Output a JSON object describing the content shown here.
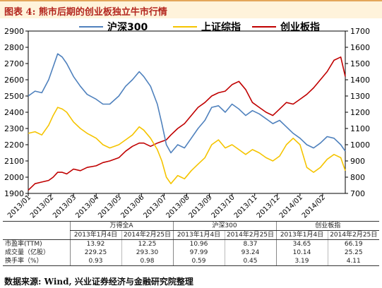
{
  "title": "图表 4: 熊市后期的创业板独立牛市行情",
  "source": "数据来源: Wind, 兴业证券经济与金融研究院整理",
  "chart_data": {
    "type": "line",
    "x_ticks": [
      "2013/01",
      "2013/02",
      "2013/03",
      "2013/04",
      "2013/05",
      "2013/06",
      "2013/07",
      "2013/08",
      "2013/09",
      "2013/10",
      "2013/11",
      "2013/12",
      "2014/01",
      "2014/02"
    ],
    "y_left": {
      "min": 1900,
      "max": 2900,
      "ticks": [
        "1900",
        "2000",
        "2100",
        "2200",
        "2300",
        "2400",
        "2500",
        "2600",
        "2700",
        "2800",
        "2900"
      ]
    },
    "y_right": {
      "min": 700,
      "max": 1700,
      "ticks": [
        "700",
        "800",
        "900",
        "1000",
        "1100",
        "1200",
        "1300",
        "1400",
        "1500",
        "1600",
        "1700"
      ]
    },
    "legend_position": "top-left",
    "series": [
      {
        "name": "沪深300",
        "axis": "left",
        "color": "#4F81BD",
        "points": [
          [
            0,
            2500
          ],
          [
            0.3,
            2530
          ],
          [
            0.6,
            2520
          ],
          [
            0.9,
            2600
          ],
          [
            1.1,
            2680
          ],
          [
            1.3,
            2760
          ],
          [
            1.5,
            2740
          ],
          [
            1.7,
            2700
          ],
          [
            2.0,
            2620
          ],
          [
            2.3,
            2560
          ],
          [
            2.6,
            2510
          ],
          [
            3.0,
            2480
          ],
          [
            3.3,
            2450
          ],
          [
            3.6,
            2450
          ],
          [
            4.0,
            2500
          ],
          [
            4.3,
            2560
          ],
          [
            4.6,
            2600
          ],
          [
            4.9,
            2650
          ],
          [
            5.1,
            2620
          ],
          [
            5.4,
            2560
          ],
          [
            5.7,
            2450
          ],
          [
            5.9,
            2330
          ],
          [
            6.1,
            2200
          ],
          [
            6.3,
            2150
          ],
          [
            6.6,
            2200
          ],
          [
            6.9,
            2180
          ],
          [
            7.2,
            2240
          ],
          [
            7.5,
            2300
          ],
          [
            7.8,
            2350
          ],
          [
            8.1,
            2430
          ],
          [
            8.4,
            2440
          ],
          [
            8.7,
            2400
          ],
          [
            9.0,
            2450
          ],
          [
            9.3,
            2420
          ],
          [
            9.6,
            2380
          ],
          [
            9.9,
            2410
          ],
          [
            10.2,
            2390
          ],
          [
            10.5,
            2360
          ],
          [
            10.8,
            2330
          ],
          [
            11.1,
            2350
          ],
          [
            11.4,
            2310
          ],
          [
            11.7,
            2270
          ],
          [
            12.0,
            2240
          ],
          [
            12.3,
            2200
          ],
          [
            12.6,
            2180
          ],
          [
            12.9,
            2210
          ],
          [
            13.2,
            2250
          ],
          [
            13.5,
            2240
          ],
          [
            13.8,
            2200
          ],
          [
            14.0,
            2160
          ]
        ]
      },
      {
        "name": "上证综指",
        "axis": "left",
        "color": "#F5C400",
        "points": [
          [
            0,
            2270
          ],
          [
            0.3,
            2280
          ],
          [
            0.6,
            2260
          ],
          [
            0.9,
            2320
          ],
          [
            1.1,
            2380
          ],
          [
            1.3,
            2430
          ],
          [
            1.5,
            2420
          ],
          [
            1.7,
            2400
          ],
          [
            2.0,
            2340
          ],
          [
            2.3,
            2300
          ],
          [
            2.6,
            2270
          ],
          [
            3.0,
            2240
          ],
          [
            3.3,
            2200
          ],
          [
            3.6,
            2180
          ],
          [
            4.0,
            2200
          ],
          [
            4.3,
            2230
          ],
          [
            4.6,
            2260
          ],
          [
            4.9,
            2310
          ],
          [
            5.1,
            2290
          ],
          [
            5.4,
            2240
          ],
          [
            5.7,
            2170
          ],
          [
            5.9,
            2100
          ],
          [
            6.1,
            2000
          ],
          [
            6.3,
            1960
          ],
          [
            6.6,
            2010
          ],
          [
            6.9,
            1990
          ],
          [
            7.2,
            2040
          ],
          [
            7.5,
            2080
          ],
          [
            7.8,
            2120
          ],
          [
            8.1,
            2200
          ],
          [
            8.4,
            2230
          ],
          [
            8.7,
            2180
          ],
          [
            9.0,
            2200
          ],
          [
            9.3,
            2170
          ],
          [
            9.6,
            2140
          ],
          [
            9.9,
            2170
          ],
          [
            10.2,
            2150
          ],
          [
            10.5,
            2120
          ],
          [
            10.8,
            2100
          ],
          [
            11.1,
            2130
          ],
          [
            11.4,
            2200
          ],
          [
            11.7,
            2240
          ],
          [
            12.0,
            2200
          ],
          [
            12.3,
            2060
          ],
          [
            12.6,
            2030
          ],
          [
            12.9,
            2060
          ],
          [
            13.2,
            2110
          ],
          [
            13.5,
            2140
          ],
          [
            13.8,
            2120
          ],
          [
            14.0,
            2040
          ]
        ]
      },
      {
        "name": "创业板指",
        "axis": "right",
        "color": "#C00000",
        "points": [
          [
            0,
            720
          ],
          [
            0.3,
            760
          ],
          [
            0.6,
            770
          ],
          [
            0.9,
            780
          ],
          [
            1.1,
            800
          ],
          [
            1.3,
            830
          ],
          [
            1.5,
            830
          ],
          [
            1.7,
            820
          ],
          [
            2.0,
            850
          ],
          [
            2.3,
            840
          ],
          [
            2.6,
            860
          ],
          [
            3.0,
            870
          ],
          [
            3.3,
            890
          ],
          [
            3.6,
            900
          ],
          [
            4.0,
            920
          ],
          [
            4.3,
            960
          ],
          [
            4.6,
            990
          ],
          [
            4.9,
            1010
          ],
          [
            5.1,
            1010
          ],
          [
            5.4,
            990
          ],
          [
            5.7,
            1010
          ],
          [
            5.9,
            1020
          ],
          [
            6.1,
            1030
          ],
          [
            6.3,
            1060
          ],
          [
            6.6,
            1100
          ],
          [
            6.9,
            1130
          ],
          [
            7.2,
            1180
          ],
          [
            7.5,
            1230
          ],
          [
            7.8,
            1260
          ],
          [
            8.1,
            1300
          ],
          [
            8.4,
            1320
          ],
          [
            8.7,
            1330
          ],
          [
            9.0,
            1370
          ],
          [
            9.3,
            1390
          ],
          [
            9.6,
            1340
          ],
          [
            9.9,
            1260
          ],
          [
            10.2,
            1230
          ],
          [
            10.5,
            1200
          ],
          [
            10.8,
            1180
          ],
          [
            11.1,
            1220
          ],
          [
            11.4,
            1260
          ],
          [
            11.7,
            1250
          ],
          [
            12.0,
            1280
          ],
          [
            12.3,
            1310
          ],
          [
            12.6,
            1350
          ],
          [
            12.9,
            1400
          ],
          [
            13.2,
            1450
          ],
          [
            13.5,
            1520
          ],
          [
            13.8,
            1540
          ],
          [
            14.0,
            1420
          ]
        ]
      }
    ]
  },
  "table": {
    "groups": [
      "万得全A",
      "沪深300",
      "创业板指"
    ],
    "dates": [
      "2013年1月4日",
      "2014年2月25日",
      "2013年1月4日",
      "2014年2月25日",
      "2013年1月4日",
      "2014年2月25日"
    ],
    "rows": [
      {
        "label": "市盈率(TTM)",
        "values": [
          "13.92",
          "12.25",
          "10.96",
          "8.37",
          "34.65",
          "66.19"
        ]
      },
      {
        "label": "成交量（亿股）",
        "values": [
          "229.25",
          "293.30",
          "97.99",
          "93.24",
          "10.14",
          "25.25"
        ]
      },
      {
        "label": "换手率（%）",
        "values": [
          "0.93",
          "0.98",
          "0.59",
          "0.45",
          "3.19",
          "4.11"
        ]
      }
    ]
  }
}
